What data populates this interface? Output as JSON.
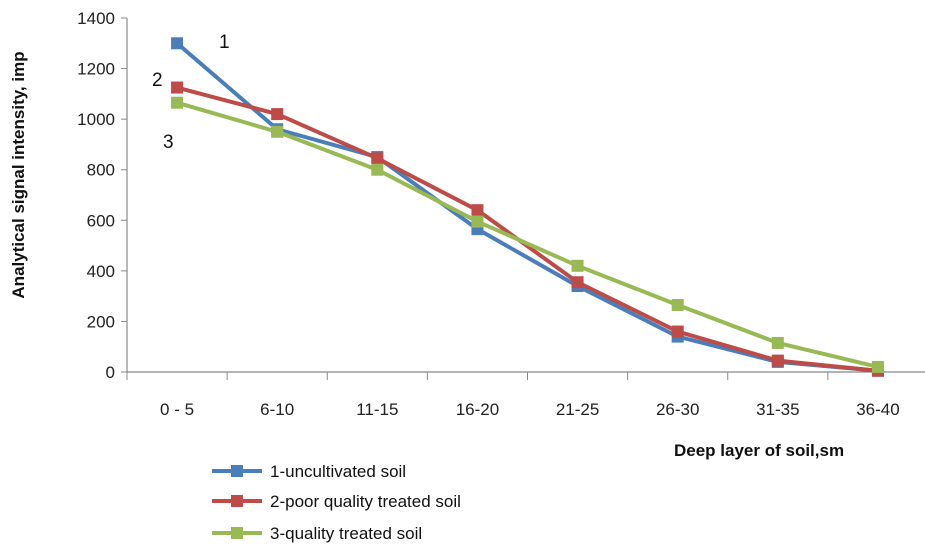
{
  "chart_data": {
    "type": "line",
    "categories": [
      "0 - 5",
      "6-10",
      "11-15",
      "16-20",
      "21-25",
      "26-30",
      "31-35",
      "36-40"
    ],
    "series": [
      {
        "name": "1-uncultivated soil",
        "color": "#4a7ebb",
        "values": [
          1300,
          960,
          850,
          565,
          340,
          140,
          40,
          5
        ]
      },
      {
        "name": "2-poor quality treated soil",
        "color": "#be4b48",
        "values": [
          1125,
          1020,
          845,
          640,
          355,
          160,
          45,
          5
        ]
      },
      {
        "name": "3-quality treated soil",
        "color": "#98b954",
        "values": [
          1065,
          950,
          800,
          595,
          420,
          265,
          115,
          20
        ]
      }
    ],
    "xlabel": "Deep layer of soil,sm",
    "ylabel": "Analytical signal intensity, imp",
    "ylim": [
      0,
      1400
    ],
    "yticks": [
      "0",
      "200",
      "400",
      "600",
      "800",
      "1000",
      "1200",
      "1400"
    ],
    "annotations": [
      "1",
      "2",
      "3"
    ],
    "grid": false,
    "legend_position": "bottom-left"
  }
}
